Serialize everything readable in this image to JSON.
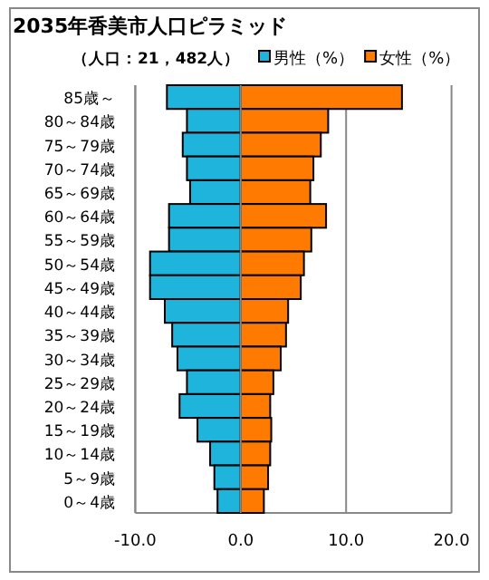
{
  "chart_data": {
    "type": "bar",
    "orientation": "horizontal",
    "title": "2035年香美市人口ピラミッド",
    "subtitle": "（人口：21，482人）",
    "categories": [
      "85歳～",
      "80～84歳",
      "75～79歳",
      "70～74歳",
      "65～69歳",
      "60～64歳",
      "55～59歳",
      "50～54歳",
      "45～49歳",
      "40～44歳",
      "35～39歳",
      "30～34歳",
      "25～29歳",
      "20～24歳",
      "15～19歳",
      "10～14歳",
      "5～9歳",
      "0～4歳"
    ],
    "series": [
      {
        "name": "男性（%）",
        "color": "#1fb4dc",
        "values": [
          -7.0,
          -5.1,
          -5.5,
          -5.1,
          -4.8,
          -6.8,
          -6.8,
          -8.6,
          -8.6,
          -7.2,
          -6.5,
          -6.0,
          -5.1,
          -5.8,
          -4.1,
          -2.9,
          -2.5,
          -2.2
        ]
      },
      {
        "name": "女性（%）",
        "color": "#ff7a00",
        "values": [
          15.3,
          8.3,
          7.6,
          6.9,
          6.6,
          8.1,
          6.7,
          6.0,
          5.7,
          4.5,
          4.3,
          3.8,
          3.1,
          2.8,
          2.9,
          2.8,
          2.6,
          2.2
        ]
      }
    ],
    "xlim": [
      -10,
      20
    ],
    "xticks": [
      {
        "value": -10,
        "label": "-10.0"
      },
      {
        "value": 0,
        "label": "0.0"
      },
      {
        "value": 10,
        "label": "10.0"
      },
      {
        "value": 20,
        "label": "20.0"
      }
    ],
    "grid": "x",
    "legend": "top right",
    "stacked": true
  }
}
